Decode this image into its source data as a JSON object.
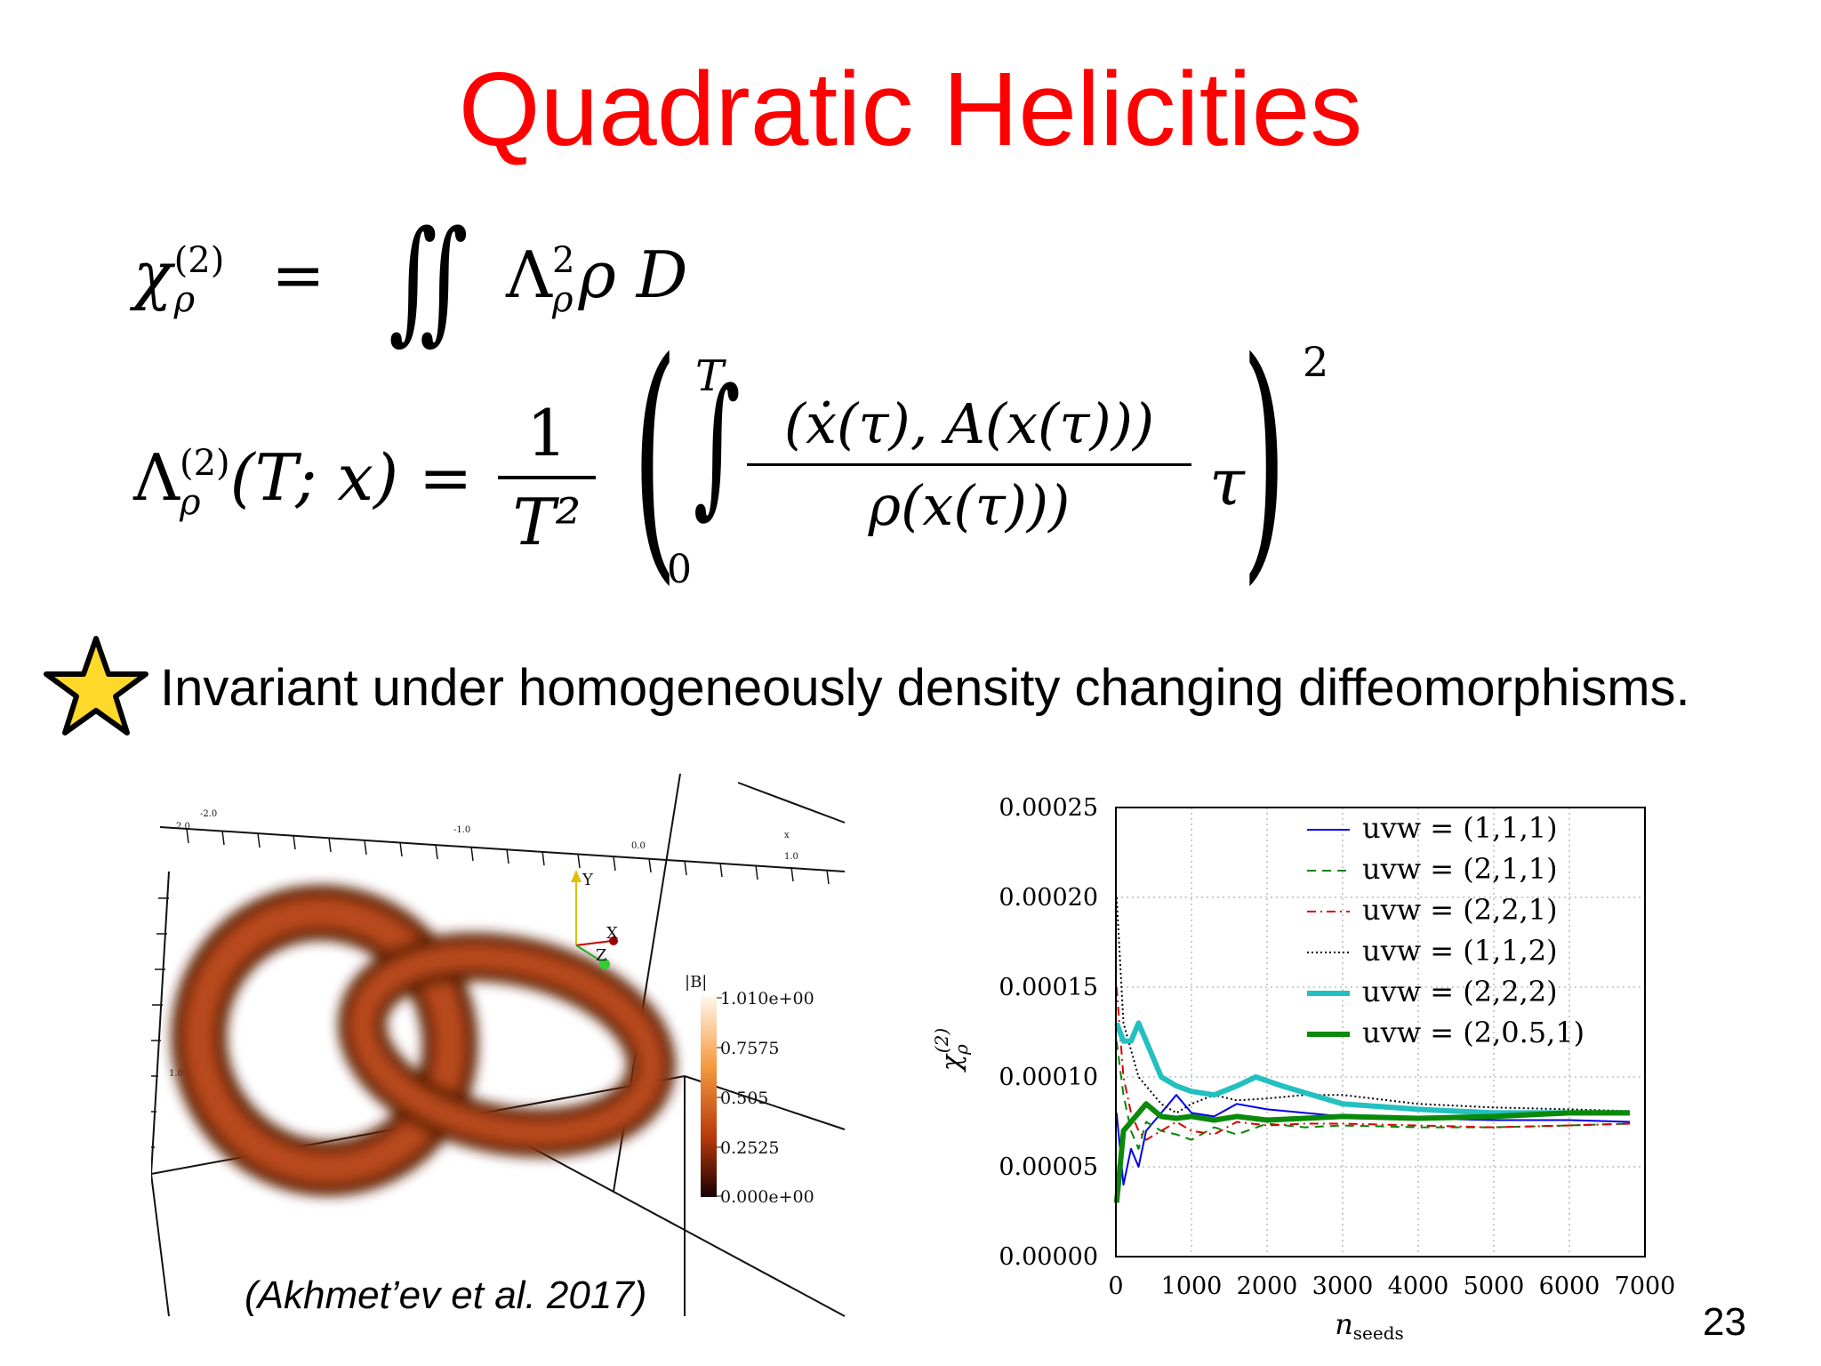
{
  "slide": {
    "title": "Quadratic Helicities",
    "bullet_text": "Invariant under homogeneously density changing diffeomorphisms.",
    "bullet_icon": "star-icon",
    "citation": "(Akhmet’ev et al. 2017)",
    "page_number": "23",
    "colors": {
      "title": "#ff0000",
      "star_fill": "#ffd92a"
    }
  },
  "equations": {
    "eq1": {
      "lhs_symbol": "χ",
      "lhs_sup": "(2)",
      "lhs_sub": "ρ",
      "integral": "∬",
      "body": "Λ",
      "body_sup": "2",
      "body_sub": "ρ",
      "body_rest": "ρ D"
    },
    "eq2": {
      "lhs_symbol": "Λ",
      "lhs_sup": "(2)",
      "lhs_sub": "ρ",
      "lhs_args": "(T; x) =",
      "frac_num": "1",
      "frac_den": "T²",
      "int_upper": "T",
      "int_lower": "0",
      "inner_num": "(ẋ(τ), A(x(τ)))",
      "inner_den": "ρ(x(τ)))",
      "tail": "τ",
      "power": "2"
    }
  },
  "figure_left": {
    "colorbar_title": "|B|",
    "colorbar_ticks": [
      "1.010e+00",
      "0.7575",
      "0.505",
      "0.2525",
      "0.000e+00"
    ],
    "axis_labels": [
      "-2.0",
      "-1.0",
      "0.0",
      "1.0",
      "2.0",
      "x",
      "1.0"
    ],
    "triad_labels": {
      "y": "Y",
      "x": "X",
      "z": "Z"
    }
  },
  "chart_data": {
    "type": "line",
    "xlabel": "n_seeds",
    "ylabel": "χ_ρ^(2)",
    "xlim": [
      0,
      7000
    ],
    "ylim": [
      0,
      0.00025
    ],
    "x_ticks": [
      "0",
      "1000",
      "2000",
      "3000",
      "4000",
      "5000",
      "6000",
      "7000"
    ],
    "y_ticks": [
      "0.00000",
      "0.00005",
      "0.00010",
      "0.00015",
      "0.00020",
      "0.00025"
    ],
    "grid": true,
    "legend_position": "top-right",
    "series": [
      {
        "name": "uvw = (1,1,1)",
        "color": "#0000ee",
        "style": "solid",
        "width": 2,
        "x": [
          10,
          100,
          200,
          300,
          400,
          600,
          800,
          1000,
          1300,
          1600,
          2000,
          2500,
          3000,
          4000,
          5000,
          6000,
          6800
        ],
        "y": [
          8e-05,
          4e-05,
          6e-05,
          5e-05,
          7e-05,
          8e-05,
          9e-05,
          8e-05,
          7.8e-05,
          8.5e-05,
          8.2e-05,
          8e-05,
          7.8e-05,
          7.7e-05,
          7.6e-05,
          7.6e-05,
          7.5e-05
        ]
      },
      {
        "name": "uvw = (2,1,1)",
        "color": "#008800",
        "style": "dashed",
        "width": 2,
        "x": [
          10,
          100,
          200,
          300,
          400,
          600,
          800,
          1000,
          1300,
          1600,
          2000,
          2500,
          3000,
          4000,
          5000,
          6000,
          6800
        ],
        "y": [
          0.00012,
          9e-05,
          7e-05,
          6e-05,
          7.5e-05,
          7e-05,
          6.8e-05,
          6.5e-05,
          7.2e-05,
          6.8e-05,
          7.4e-05,
          7.2e-05,
          7.3e-05,
          7.2e-05,
          7.2e-05,
          7.3e-05,
          7.4e-05
        ]
      },
      {
        "name": "uvw = (2,2,1)",
        "color": "#dd0000",
        "style": "dashdot",
        "width": 2,
        "x": [
          10,
          100,
          200,
          300,
          400,
          600,
          800,
          1000,
          1300,
          1600,
          2000,
          2500,
          3000,
          4000,
          5000,
          6000,
          6800
        ],
        "y": [
          0.00015,
          0.0001,
          8e-05,
          7e-05,
          6.5e-05,
          7e-05,
          7.5e-05,
          7e-05,
          6.8e-05,
          7.5e-05,
          7.3e-05,
          7.4e-05,
          7.4e-05,
          7.3e-05,
          7.2e-05,
          7.3e-05,
          7.4e-05
        ]
      },
      {
        "name": "uvw = (1,1,2)",
        "color": "#000000",
        "style": "dotted",
        "width": 2,
        "x": [
          10,
          100,
          200,
          300,
          400,
          600,
          800,
          1000,
          1300,
          1600,
          2000,
          2500,
          3000,
          4000,
          5000,
          6000,
          6800
        ],
        "y": [
          0.0002,
          0.00013,
          0.000115,
          0.0001,
          9.5e-05,
          8.5e-05,
          8e-05,
          8.5e-05,
          9e-05,
          8.7e-05,
          8.8e-05,
          9e-05,
          9e-05,
          8.5e-05,
          8.3e-05,
          8.2e-05,
          8.1e-05
        ]
      },
      {
        "name": "uvw = (2,2,2)",
        "color": "#22c0c0",
        "style": "solid",
        "width": 6,
        "x": [
          10,
          100,
          200,
          300,
          400,
          600,
          800,
          1000,
          1300,
          1600,
          1850,
          2200,
          2600,
          3000,
          4000,
          5000,
          6000,
          6800
        ],
        "y": [
          0.00013,
          0.00012,
          0.00012,
          0.00013,
          0.00012,
          0.0001,
          9.5e-05,
          9.2e-05,
          9e-05,
          9.5e-05,
          0.0001,
          9.5e-05,
          9e-05,
          8.5e-05,
          8.2e-05,
          8e-05,
          8e-05,
          8e-05
        ]
      },
      {
        "name": "uvw = (2,0.5,1)",
        "color": "#0a8a0a",
        "style": "solid",
        "width": 6,
        "x": [
          10,
          100,
          200,
          300,
          400,
          600,
          800,
          1000,
          1300,
          1600,
          2000,
          2500,
          3000,
          4000,
          5000,
          6000,
          6800
        ],
        "y": [
          3e-05,
          7e-05,
          7.5e-05,
          8e-05,
          8.5e-05,
          7.8e-05,
          7.7e-05,
          7.8e-05,
          7.6e-05,
          7.8e-05,
          7.6e-05,
          7.7e-05,
          7.8e-05,
          7.7e-05,
          7.8e-05,
          8e-05,
          8e-05
        ]
      }
    ]
  }
}
